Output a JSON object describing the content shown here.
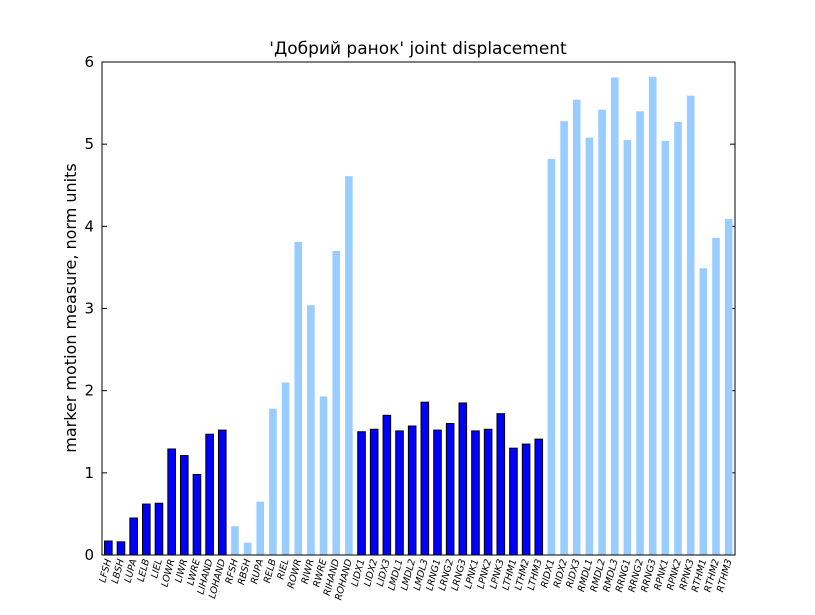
{
  "chart_data": {
    "type": "bar",
    "title": "'Добрий ранок' joint displacement",
    "xlabel": "",
    "ylabel": "marker motion measure,  norm units",
    "ylim": [
      0,
      6
    ],
    "yticks": [
      "0",
      "1",
      "2",
      "3",
      "4",
      "5",
      "6"
    ],
    "grid": false,
    "colors": {
      "dark": "#0000ff",
      "light": "#99ccff",
      "edge": "#000000"
    },
    "categories": [
      "LFSH",
      "LBSH",
      "LUPA",
      "LELB",
      "LIEL",
      "LOWR",
      "LIWR",
      "LWRE",
      "LIHAND",
      "LOHAND",
      "RFSH",
      "RBSH",
      "RUPA",
      "RELB",
      "RIEL",
      "ROWR",
      "RIWR",
      "RWRE",
      "RIHAND",
      "ROHAND",
      "LIDX1",
      "LIDX2",
      "LIDX3",
      "LMDL1",
      "LMDL2",
      "LMDL3",
      "LRNG1",
      "LRNG2",
      "LRNG3",
      "LPNK1",
      "LPNK2",
      "LPNK3",
      "LTHM1",
      "LTHM2",
      "LTHM3",
      "RIDX1",
      "RIDX2",
      "RIDX3",
      "RMDL1",
      "RMDL2",
      "RMDL3",
      "RRNG1",
      "RRNG2",
      "RRNG3",
      "RPNK1",
      "RPNK2",
      "RPNK3",
      "RTHM1",
      "RTHM2",
      "RTHM3"
    ],
    "values": [
      0.17,
      0.16,
      0.45,
      0.62,
      0.63,
      1.29,
      1.21,
      0.98,
      1.47,
      1.52,
      0.35,
      0.15,
      0.65,
      1.78,
      2.1,
      3.81,
      3.04,
      1.93,
      3.7,
      4.61,
      1.5,
      1.53,
      1.7,
      1.51,
      1.57,
      1.86,
      1.52,
      1.6,
      1.85,
      1.51,
      1.53,
      1.72,
      1.3,
      1.35,
      1.41,
      4.82,
      5.28,
      5.54,
      5.08,
      5.42,
      5.81,
      5.05,
      5.4,
      5.82,
      5.04,
      5.27,
      5.59,
      3.49,
      3.86,
      4.09
    ],
    "bar_color_keys": [
      "dark",
      "dark",
      "dark",
      "dark",
      "dark",
      "dark",
      "dark",
      "dark",
      "dark",
      "dark",
      "light",
      "light",
      "light",
      "light",
      "light",
      "light",
      "light",
      "light",
      "light",
      "light",
      "dark",
      "dark",
      "dark",
      "dark",
      "dark",
      "dark",
      "dark",
      "dark",
      "dark",
      "dark",
      "dark",
      "dark",
      "dark",
      "dark",
      "dark",
      "light",
      "light",
      "light",
      "light",
      "light",
      "light",
      "light",
      "light",
      "light",
      "light",
      "light",
      "light",
      "light",
      "light",
      "light"
    ]
  }
}
